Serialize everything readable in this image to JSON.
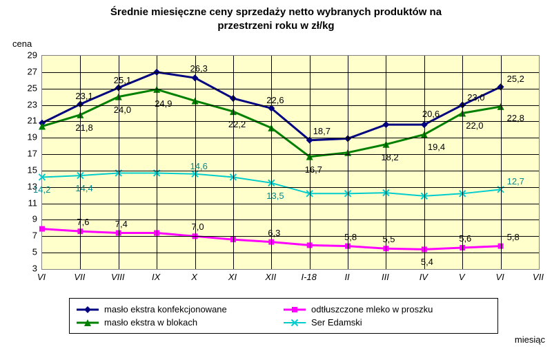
{
  "title": "Średnie miesięczne ceny sprzedaży netto  wybranych produktów na\nprzestrzeni roku w zł/kg",
  "y_axis_label": "cena",
  "x_axis_label": "miesiąc",
  "background_color": "#ffffff",
  "plot_background_color": "#ffffcc",
  "grid_color": "#000000",
  "y": {
    "min": 3,
    "max": 29,
    "step": 2,
    "ticks": [
      3,
      5,
      7,
      9,
      11,
      13,
      15,
      17,
      19,
      21,
      23,
      25,
      27,
      29
    ]
  },
  "x": {
    "categories": [
      "VI",
      "VII",
      "VIII",
      "IX",
      "X",
      "XI",
      "XII",
      "I-18",
      "II",
      "III",
      "IV",
      "V",
      "VI",
      "VII"
    ]
  },
  "series": [
    {
      "name": "masło ekstra konfekcjonowane",
      "color": "#000080",
      "marker": "diamond",
      "marker_size": 10,
      "line_width": 3,
      "values": [
        20.8,
        23.1,
        25.1,
        27.0,
        26.3,
        23.8,
        22.6,
        18.7,
        18.9,
        20.6,
        20.6,
        23.0,
        25.2
      ],
      "labels": [
        {
          "i": 1,
          "v": "23,1",
          "dx": -6,
          "dy": -18
        },
        {
          "i": 2,
          "v": "25,1",
          "dx": -6,
          "dy": -18
        },
        {
          "i": 4,
          "v": "26,3",
          "dx": -6,
          "dy": -20
        },
        {
          "i": 6,
          "v": "22,6",
          "dx": -6,
          "dy": -18
        },
        {
          "i": 7,
          "v": "18,7",
          "dx": 6,
          "dy": -20
        },
        {
          "i": 10,
          "v": "20,6",
          "dx": -2,
          "dy": -22
        },
        {
          "i": 11,
          "v": "23,0",
          "dx": 8,
          "dy": -18
        },
        {
          "i": 12,
          "v": "25,2",
          "dx": 10,
          "dy": -18
        }
      ]
    },
    {
      "name": "odtłuszczone mleko w proszku",
      "color": "#ff00ff",
      "marker": "square",
      "marker_size": 8,
      "line_width": 3,
      "values": [
        7.9,
        7.6,
        7.4,
        7.4,
        7.0,
        6.6,
        6.3,
        5.9,
        5.8,
        5.5,
        5.4,
        5.6,
        5.8
      ],
      "labels": [
        {
          "i": 1,
          "v": "7,6",
          "dx": -4,
          "dy": -20
        },
        {
          "i": 2,
          "v": "7,4",
          "dx": -4,
          "dy": -20
        },
        {
          "i": 4,
          "v": "7,0",
          "dx": -4,
          "dy": -20
        },
        {
          "i": 6,
          "v": "6,3",
          "dx": -4,
          "dy": -20
        },
        {
          "i": 8,
          "v": "5,8",
          "dx": -4,
          "dy": -20
        },
        {
          "i": 9,
          "v": "5,5",
          "dx": -4,
          "dy": -20
        },
        {
          "i": 10,
          "v": "5,4",
          "dx": -4,
          "dy": 12
        },
        {
          "i": 11,
          "v": "5,6",
          "dx": -4,
          "dy": -20
        },
        {
          "i": 12,
          "v": "5,8",
          "dx": 10,
          "dy": -20
        }
      ]
    },
    {
      "name": "masło ekstra w blokach",
      "color": "#008000",
      "marker": "triangle",
      "marker_size": 10,
      "line_width": 3,
      "values": [
        20.4,
        21.8,
        24.0,
        24.9,
        23.5,
        22.2,
        20.2,
        16.7,
        17.2,
        18.2,
        19.4,
        22.0,
        22.8
      ],
      "labels": [
        {
          "i": 1,
          "v": "21,8",
          "dx": -6,
          "dy": 12
        },
        {
          "i": 2,
          "v": "24,0",
          "dx": -6,
          "dy": 12
        },
        {
          "i": 3,
          "v": "24,9",
          "dx": -2,
          "dy": 14
        },
        {
          "i": 5,
          "v": "22,2",
          "dx": -6,
          "dy": 12
        },
        {
          "i": 7,
          "v": "16,7",
          "dx": -6,
          "dy": 12
        },
        {
          "i": 9,
          "v": "18,2",
          "dx": -6,
          "dy": 12
        },
        {
          "i": 10,
          "v": "19,4",
          "dx": 6,
          "dy": 12
        },
        {
          "i": 11,
          "v": "22,0",
          "dx": 6,
          "dy": 12
        },
        {
          "i": 12,
          "v": "22,8",
          "dx": 10,
          "dy": 10
        }
      ]
    },
    {
      "name": "Ser Edamski",
      "color": "#00cccc",
      "marker": "x",
      "marker_size": 9,
      "line_width": 2,
      "values": [
        14.2,
        14.4,
        14.7,
        14.7,
        14.6,
        14.2,
        13.5,
        12.2,
        12.2,
        12.3,
        11.9,
        12.2,
        12.7
      ],
      "labels": [
        {
          "i": 0,
          "v": "14,2",
          "dx": -12,
          "dy": 12
        },
        {
          "i": 1,
          "v": "14,4",
          "dx": -6,
          "dy": 12
        },
        {
          "i": 4,
          "v": "14,6",
          "dx": -6,
          "dy": -18
        },
        {
          "i": 6,
          "v": "13,5",
          "dx": -6,
          "dy": 12
        },
        {
          "i": 12,
          "v": "12,7",
          "dx": 10,
          "dy": -18
        }
      ]
    }
  ],
  "label_fontsize": 13,
  "title_fontsize": 15
}
